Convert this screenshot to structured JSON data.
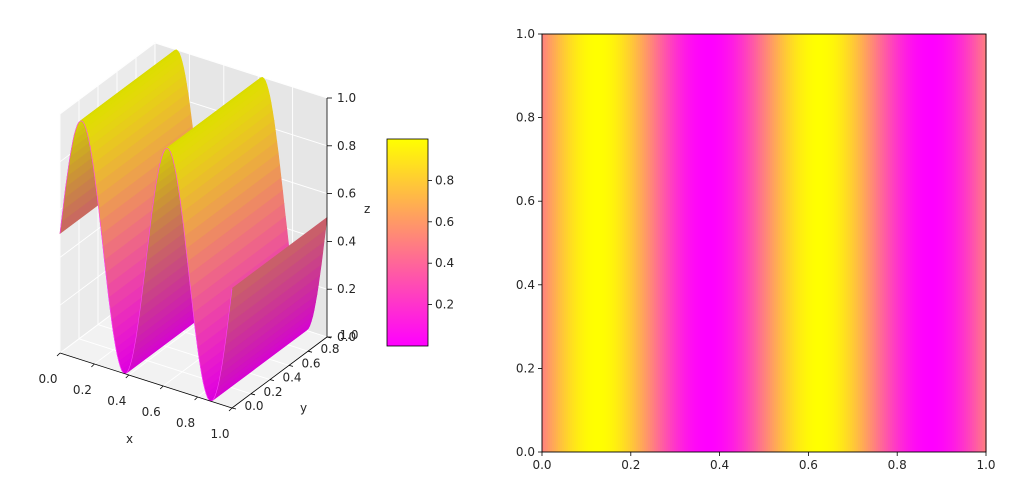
{
  "chart_data": [
    {
      "type": "surface",
      "function": "z = (sin(2*pi*x*2) + 1) / 2",
      "xlabel": "x",
      "ylabel": "y",
      "zlabel": "z",
      "xlim": [
        0,
        1
      ],
      "ylim": [
        0,
        1
      ],
      "zlim": [
        0,
        1
      ],
      "x_ticks": [
        "0.0",
        "0.2",
        "0.4",
        "0.6",
        "0.8",
        "1.0"
      ],
      "y_ticks": [
        "0.0",
        "0.2",
        "0.4",
        "0.6",
        "0.8",
        "1.0"
      ],
      "z_ticks": [
        "0.0",
        "0.2",
        "0.4",
        "0.6",
        "0.8",
        "1.0"
      ],
      "colormap": "spring",
      "colormap_colors": [
        "#ff00ff",
        "#ffff00"
      ],
      "grid": true,
      "colorbar": {
        "ticks": [
          "0.2",
          "0.4",
          "0.6",
          "0.8"
        ],
        "range": [
          0,
          1
        ]
      }
    },
    {
      "type": "heatmap",
      "function": "z = (sin(2*pi*x*2) + 1) / 2",
      "xlim": [
        0,
        1
      ],
      "ylim": [
        0,
        1
      ],
      "x_ticks": [
        "0.0",
        "0.2",
        "0.4",
        "0.6",
        "0.8",
        "1.0"
      ],
      "y_ticks": [
        "0.0",
        "0.2",
        "0.4",
        "0.6",
        "0.8",
        "1.0"
      ],
      "colormap": "spring",
      "colormap_colors": [
        "#ff00ff",
        "#ffff00"
      ]
    }
  ]
}
